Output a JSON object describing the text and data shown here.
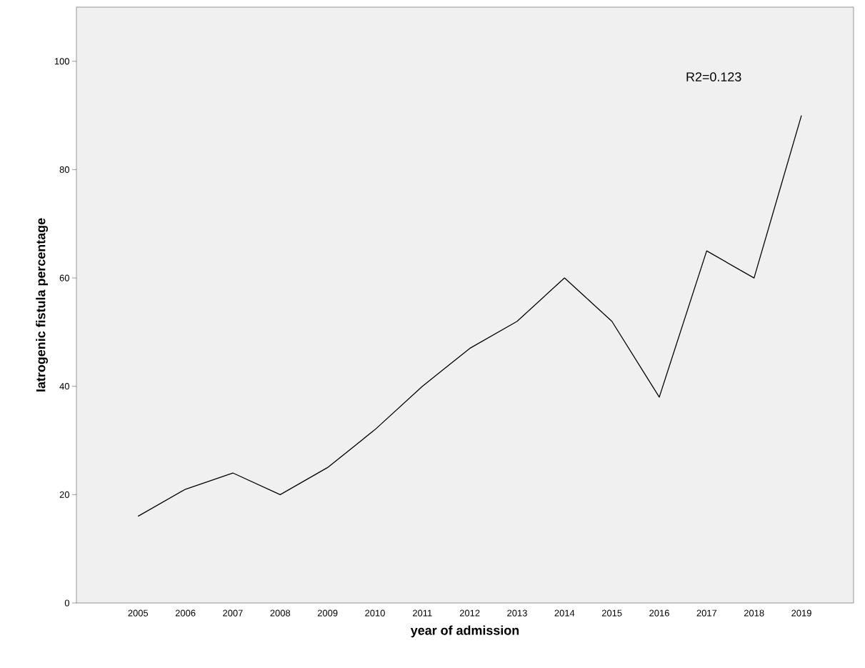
{
  "chart_data": {
    "type": "line",
    "xlabel": "year of admission",
    "ylabel": "Iatrogenic fistula percentage",
    "categories": [
      "2005",
      "2006",
      "2007",
      "2008",
      "2009",
      "2010",
      "2011",
      "2012",
      "2013",
      "2014",
      "2015",
      "2016",
      "2017",
      "2018",
      "2019"
    ],
    "series": [
      {
        "color": "#000000",
        "values": [
          16,
          21,
          24,
          20,
          25,
          32,
          40,
          47,
          52,
          60,
          52,
          38,
          65,
          60,
          90
        ]
      }
    ],
    "ylim": [
      0,
      110
    ],
    "yticks": [
      0,
      20,
      40,
      60,
      80,
      100
    ],
    "annotations": [
      "R2=0.123"
    ],
    "grid": false,
    "marker": "none",
    "line_style": "solid"
  }
}
